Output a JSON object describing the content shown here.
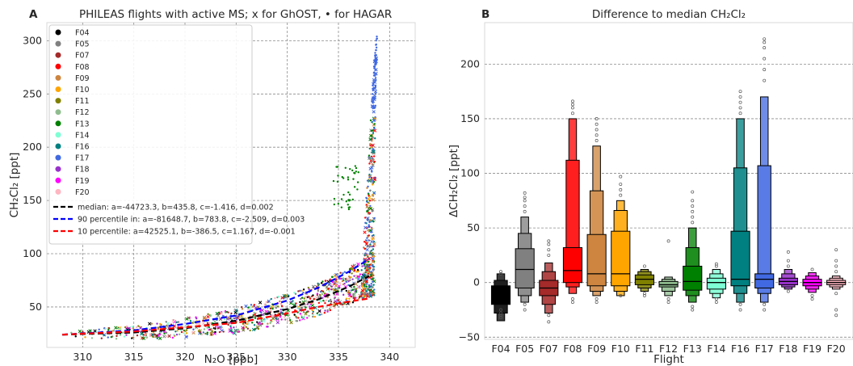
{
  "chart_data": [
    {
      "type": "scatter",
      "panel_label": "A",
      "title": "PHILEAS flights with active MS; x for GhOST, • for HAGAR",
      "xlabel": "N₂O [ppb]",
      "ylabel": "CH₂Cl₂ [ppt]",
      "xlim": [
        306.5,
        342.5
      ],
      "ylim": [
        12,
        317
      ],
      "xticks": [
        "310",
        "315",
        "320",
        "325",
        "330",
        "335",
        "340"
      ],
      "yticks": [
        "50",
        "100",
        "150",
        "200",
        "250",
        "300"
      ],
      "grid": true,
      "legend_position": "upper left",
      "series": [
        {
          "name": "F04",
          "color": "#000000"
        },
        {
          "name": "F05",
          "color": "#808080"
        },
        {
          "name": "F07",
          "color": "#a52a2a"
        },
        {
          "name": "F08",
          "color": "#ff0000"
        },
        {
          "name": "F09",
          "color": "#cd853f"
        },
        {
          "name": "F10",
          "color": "#ffa500"
        },
        {
          "name": "F11",
          "color": "#808000"
        },
        {
          "name": "F12",
          "color": "#8fbc8f"
        },
        {
          "name": "F13",
          "color": "#008000"
        },
        {
          "name": "F14",
          "color": "#7fffd4"
        },
        {
          "name": "F16",
          "color": "#008080"
        },
        {
          "name": "F17",
          "color": "#4169e1"
        },
        {
          "name": "F18",
          "color": "#9932cc"
        },
        {
          "name": "F19",
          "color": "#ff00ff"
        },
        {
          "name": "F20",
          "color": "#ffb6c1"
        }
      ],
      "fits": [
        {
          "name": "median: a=-44723.3, b=435.8, c=-1.416, d=0.002",
          "color": "#000000",
          "x": [
            308,
            315,
            320,
            325,
            330,
            333,
            336,
            338
          ],
          "y": [
            24,
            26,
            30,
            37,
            48,
            57,
            69,
            79
          ]
        },
        {
          "name": "90 percentile in: a=-81648.7, b=783.8, c=-2.509, d=0.003",
          "color": "#0000ff",
          "x": [
            308,
            315,
            320,
            325,
            330,
            333,
            336,
            338
          ],
          "y": [
            24,
            28,
            34,
            42,
            56,
            68,
            83,
            95
          ]
        },
        {
          "name": "10 percentile: a=42525.1, b=-386.5, c=1.167, d=-0.001",
          "color": "#ff0000",
          "x": [
            308,
            315,
            320,
            325,
            330,
            333,
            336,
            338
          ],
          "y": [
            24,
            27,
            31,
            35,
            44,
            50,
            55,
            58
          ]
        }
      ]
    },
    {
      "type": "boxen",
      "panel_label": "B",
      "title": "Difference to median CH₂Cl₂",
      "xlabel": "Flight",
      "ylabel": "ΔCH₂Cl₂ [ppt]",
      "ylim": [
        -52,
        238
      ],
      "yticks": [
        "−50",
        "0",
        "50",
        "100",
        "150",
        "200"
      ],
      "grid": true,
      "categories": [
        "F04",
        "F05",
        "F07",
        "F08",
        "F09",
        "F10",
        "F11",
        "F12",
        "F13",
        "F14",
        "F16",
        "F17",
        "F18",
        "F19",
        "F20"
      ],
      "colors": [
        "#000000",
        "#808080",
        "#a52a2a",
        "#ff0000",
        "#cd853f",
        "#ffa500",
        "#808000",
        "#8fbc8f",
        "#008000",
        "#7fffd4",
        "#008080",
        "#4169e1",
        "#9932cc",
        "#ff00ff",
        "#ffb6c1"
      ],
      "medians": [
        -10,
        12,
        -5,
        11,
        8,
        8,
        3,
        -2,
        1,
        0,
        3,
        3,
        1,
        0,
        0
      ],
      "boxes_lower_upper": [
        [
          [
            -20,
            -3
          ],
          [
            -28,
            2
          ],
          [
            -35,
            8
          ]
        ],
        [
          [
            -5,
            31
          ],
          [
            -12,
            45
          ],
          [
            -18,
            60
          ]
        ],
        [
          [
            -12,
            2
          ],
          [
            -20,
            10
          ],
          [
            -28,
            18
          ]
        ],
        [
          [
            0,
            32
          ],
          [
            -4,
            112
          ],
          [
            -10,
            150
          ]
        ],
        [
          [
            -3,
            44
          ],
          [
            -8,
            84
          ],
          [
            -12,
            125
          ]
        ],
        [
          [
            -3,
            47
          ],
          [
            -8,
            66
          ],
          [
            -12,
            75
          ]
        ],
        [
          [
            -2,
            7
          ],
          [
            -5,
            10
          ],
          [
            -8,
            12
          ]
        ],
        [
          [
            -4,
            1
          ],
          [
            -8,
            3
          ],
          [
            -12,
            5
          ]
        ],
        [
          [
            -7,
            15
          ],
          [
            -12,
            32
          ],
          [
            -18,
            50
          ]
        ],
        [
          [
            -6,
            4
          ],
          [
            -10,
            8
          ],
          [
            -14,
            12
          ]
        ],
        [
          [
            -3,
            47
          ],
          [
            -10,
            105
          ],
          [
            -18,
            150
          ]
        ],
        [
          [
            -5,
            8
          ],
          [
            -10,
            107
          ],
          [
            -18,
            170
          ]
        ],
        [
          [
            -2,
            4
          ],
          [
            -4,
            8
          ],
          [
            -6,
            12
          ]
        ],
        [
          [
            -3,
            3
          ],
          [
            -6,
            6
          ],
          [
            -9,
            9
          ]
        ],
        [
          [
            -2,
            2
          ],
          [
            -4,
            4
          ],
          [
            -6,
            6
          ]
        ]
      ],
      "outliers": [
        [
          -25,
          -28,
          -30,
          -32,
          8,
          10
        ],
        [
          65,
          70,
          75,
          78,
          82,
          -20,
          -25
        ],
        [
          25,
          30,
          35,
          38,
          -30,
          -36
        ],
        [
          155,
          160,
          163,
          166,
          -15,
          -18
        ],
        [
          130,
          135,
          140,
          145,
          150,
          -15,
          -18
        ],
        [
          80,
          85,
          90,
          97,
          -12
        ],
        [
          -10,
          -12,
          15
        ],
        [
          38,
          -15,
          -18
        ],
        [
          55,
          60,
          65,
          70,
          75,
          83,
          -22,
          -25
        ],
        [
          15,
          17,
          -15,
          -18
        ],
        [
          155,
          160,
          165,
          170,
          175,
          -20,
          -25
        ],
        [
          185,
          195,
          205,
          215,
          220,
          223,
          -20,
          -25
        ],
        [
          15,
          20,
          28,
          -8
        ],
        [
          12,
          -12,
          -15
        ],
        [
          10,
          15,
          20,
          30,
          -10,
          -25,
          -30
        ]
      ]
    }
  ]
}
